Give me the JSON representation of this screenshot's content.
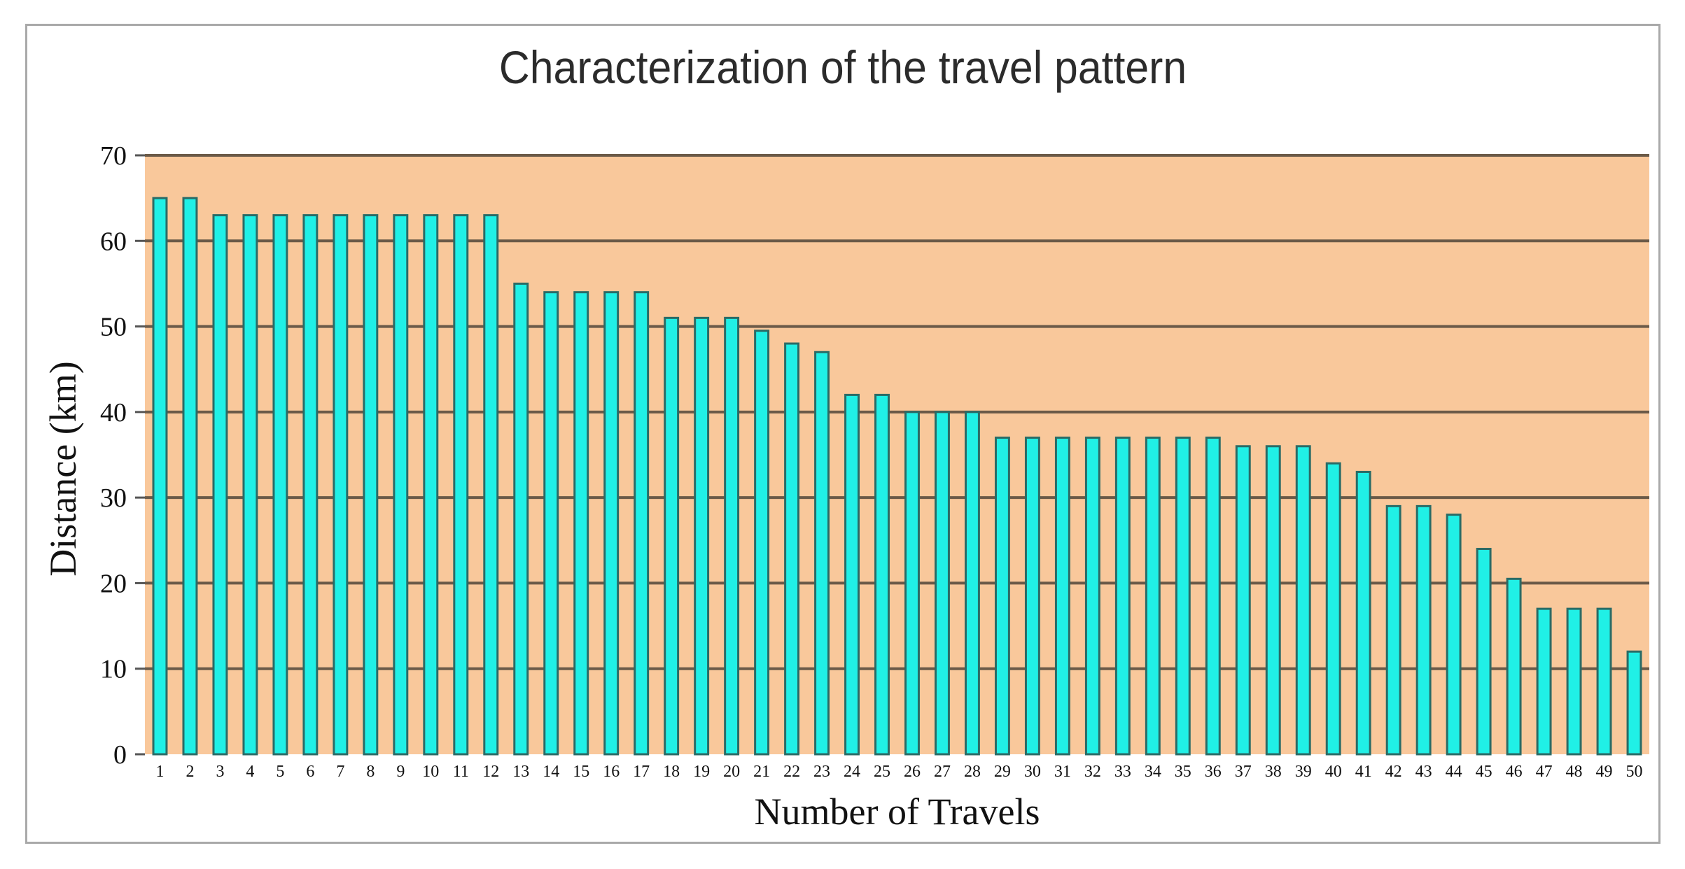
{
  "chart_data": {
    "type": "bar",
    "title": "Characterization of the travel pattern",
    "xlabel": "Number of Travels",
    "ylabel": "Distance (km)",
    "ylim": [
      0,
      70
    ],
    "yticks": [
      0,
      10,
      20,
      30,
      40,
      50,
      60,
      70
    ],
    "grid": true,
    "legend": "none",
    "colors": {
      "plot_background": "#f9c89b",
      "bar_fill": "#20f0e6",
      "bar_stroke": "#2a6b66",
      "grid": "#6b5a48"
    },
    "categories": [
      "1",
      "2",
      "3",
      "4",
      "5",
      "6",
      "7",
      "8",
      "9",
      "10",
      "11",
      "12",
      "13",
      "14",
      "15",
      "16",
      "17",
      "18",
      "19",
      "20",
      "21",
      "22",
      "23",
      "24",
      "25",
      "26",
      "27",
      "28",
      "29",
      "30",
      "31",
      "32",
      "33",
      "34",
      "35",
      "36",
      "37",
      "38",
      "39",
      "40",
      "41",
      "42",
      "43",
      "44",
      "45",
      "46",
      "47",
      "48",
      "49",
      "50"
    ],
    "values": [
      65,
      65,
      63,
      63,
      63,
      63,
      63,
      63,
      63,
      63,
      63,
      63,
      55,
      54,
      54,
      54,
      54,
      51,
      51,
      51,
      49.5,
      48,
      47,
      42,
      42,
      40,
      40,
      40,
      37,
      37,
      37,
      37,
      37,
      37,
      37,
      37,
      36,
      36,
      36,
      34,
      33,
      29,
      29,
      28,
      24,
      20.5,
      17,
      17,
      17,
      12
    ]
  }
}
